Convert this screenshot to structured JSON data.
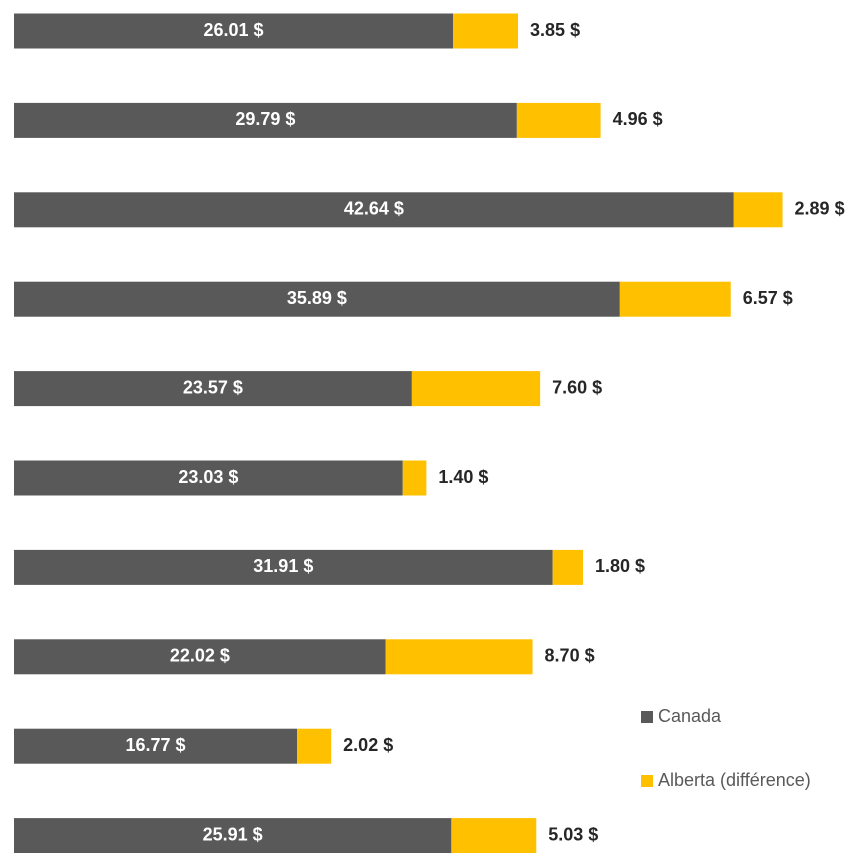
{
  "chart_data": {
    "type": "stacked-bar-horizontal",
    "categories": [
      null,
      null,
      null,
      null,
      null,
      null,
      null,
      null,
      null,
      null
    ],
    "series": [
      {
        "name": "Canada",
        "color": "#595959",
        "values": [
          26.01,
          29.79,
          42.64,
          35.89,
          23.57,
          23.03,
          31.91,
          22.02,
          16.77,
          25.91
        ],
        "value_labels": [
          "26.01 $",
          "29.79 $",
          "42.64 $",
          "35.89 $",
          "23.57 $",
          "23.03 $",
          "31.91 $",
          "22.02 $",
          "16.77 $",
          "25.91 $"
        ]
      },
      {
        "name": "Alberta (différence)",
        "color": "#ffc000",
        "values": [
          3.85,
          4.96,
          2.89,
          6.57,
          7.6,
          1.4,
          1.8,
          8.7,
          2.02,
          5.03
        ],
        "value_labels": [
          "3.85 $",
          "4.96 $",
          "2.89 $",
          "6.57 $",
          "7.60 $",
          "1.40 $",
          "1.80 $",
          "8.70 $",
          "2.02 $",
          "5.03 $"
        ]
      }
    ]
  }
}
